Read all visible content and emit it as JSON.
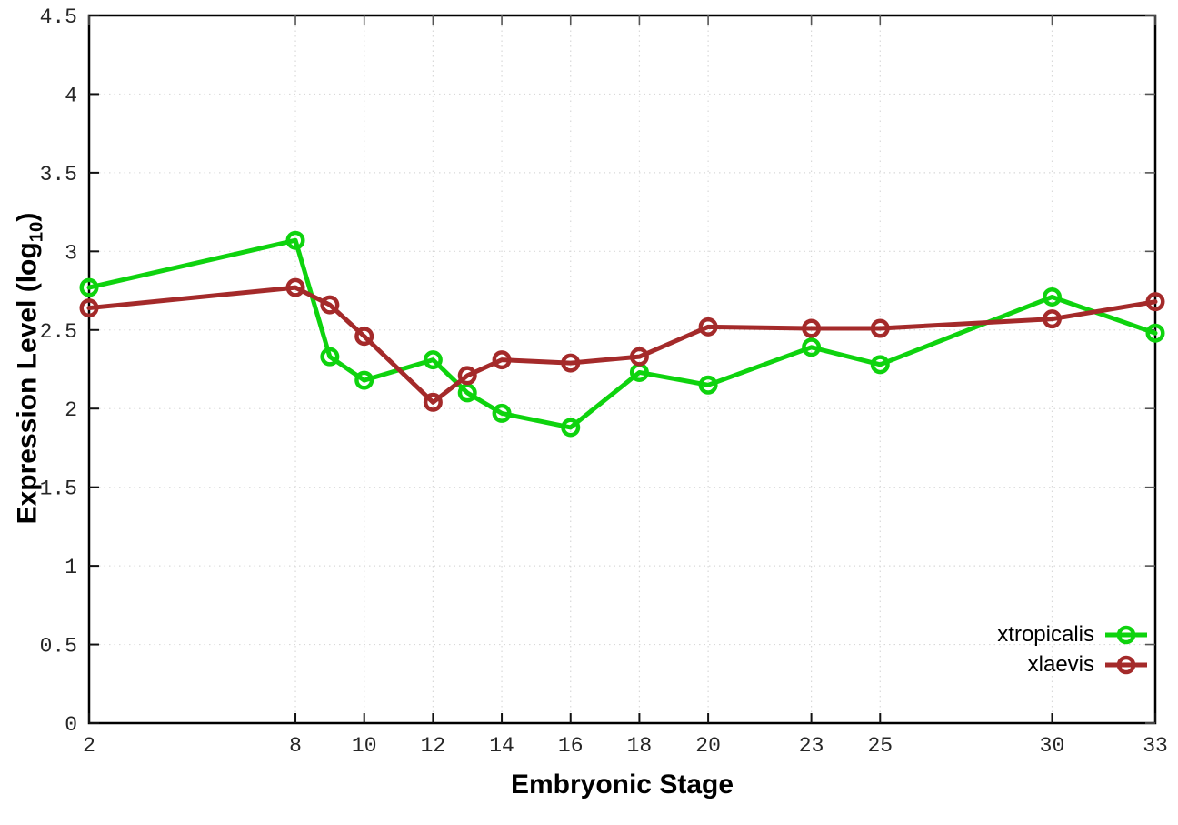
{
  "figure": {
    "background": "#ffffff",
    "xlabel": "Embryonic Stage",
    "ylabel_prefix": "Expression Level (log",
    "ylabel_sub": "10",
    "ylabel_suffix": ")"
  },
  "chart_data": {
    "type": "line",
    "title": "",
    "xlabel": "Embryonic Stage",
    "ylabel": "Expression Level (log10)",
    "x": [
      2,
      8,
      9,
      10,
      12,
      13,
      14,
      16,
      18,
      20,
      23,
      25,
      30,
      33
    ],
    "series": [
      {
        "name": "xtropicalis",
        "color": "#0ed30e",
        "marker": "open-circle",
        "values": [
          2.77,
          3.07,
          2.33,
          2.18,
          2.31,
          2.1,
          1.97,
          1.88,
          2.23,
          2.15,
          2.39,
          2.28,
          2.71,
          2.48
        ]
      },
      {
        "name": "xlaevis",
        "color": "#a42a2a",
        "marker": "open-circle",
        "values": [
          2.64,
          2.77,
          2.66,
          2.46,
          2.04,
          2.21,
          2.31,
          2.29,
          2.33,
          2.52,
          2.51,
          2.51,
          2.57,
          2.68
        ]
      }
    ],
    "xticks": [
      2,
      8,
      10,
      12,
      14,
      16,
      18,
      20,
      23,
      25,
      30,
      33
    ],
    "yticks": [
      0,
      0.5,
      1,
      1.5,
      2,
      2.5,
      3,
      3.5,
      4,
      4.5
    ],
    "xlim": [
      2,
      33
    ],
    "ylim": [
      0,
      4.5
    ],
    "grid": true,
    "grid_style": "dotted",
    "grid_color": "#d9d9d9",
    "border_color": "#000000",
    "tick_label_color": "#262626",
    "legend_position": "bottom-right"
  },
  "legend": {
    "items": [
      {
        "label": "xtropicalis",
        "color": "#0ed30e"
      },
      {
        "label": "xlaevis",
        "color": "#a42a2a"
      }
    ]
  }
}
